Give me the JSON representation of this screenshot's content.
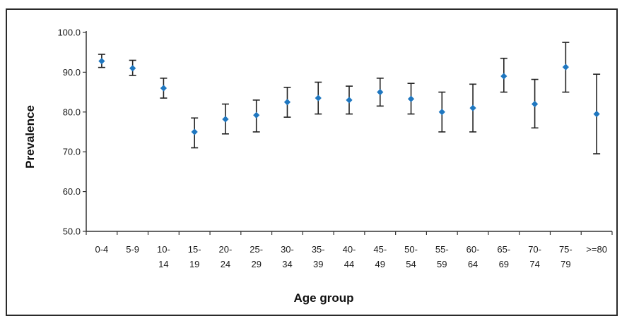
{
  "chart_data": {
    "type": "scatter",
    "title": "",
    "xlabel": "Age group",
    "ylabel": "Prevalence",
    "ylim": [
      50.0,
      100.0
    ],
    "yticks": [
      "50.0",
      "60.0",
      "70.0",
      "80.0",
      "90.0",
      "100.0"
    ],
    "grid": false,
    "categories": [
      [
        "0-4"
      ],
      [
        "5-9"
      ],
      [
        "10-",
        "14"
      ],
      [
        "15-",
        "19"
      ],
      [
        "20-",
        "24"
      ],
      [
        "25-",
        "29"
      ],
      [
        "30-",
        "34"
      ],
      [
        "35-",
        "39"
      ],
      [
        "40-",
        "44"
      ],
      [
        "45-",
        "49"
      ],
      [
        "50-",
        "54"
      ],
      [
        "55-",
        "59"
      ],
      [
        "60-",
        "64"
      ],
      [
        "65-",
        "69"
      ],
      [
        "70-",
        "74"
      ],
      [
        "75-",
        "79"
      ],
      [
        ">=80"
      ]
    ],
    "series": [
      {
        "values": [
          92.8,
          91.0,
          86.0,
          75.0,
          78.2,
          79.2,
          82.5,
          83.5,
          83.0,
          85.0,
          83.3,
          80.0,
          81.0,
          89.0,
          82.0,
          91.3,
          79.5
        ],
        "lower": [
          91.2,
          89.2,
          83.5,
          71.0,
          74.5,
          75.0,
          78.7,
          79.5,
          79.5,
          81.5,
          79.5,
          75.0,
          75.0,
          85.0,
          76.0,
          85.0,
          69.5
        ],
        "upper": [
          94.5,
          93.0,
          88.5,
          78.5,
          82.0,
          83.0,
          86.2,
          87.5,
          86.5,
          88.5,
          87.2,
          85.0,
          87.0,
          93.5,
          88.2,
          97.5,
          89.5
        ],
        "color": "#1f77c0"
      }
    ],
    "errorbar_color": "#222222",
    "axis_color": "#333333"
  }
}
